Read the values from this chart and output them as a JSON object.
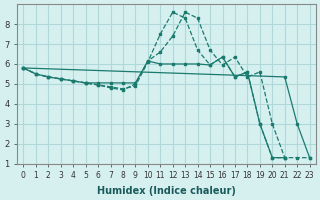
{
  "xlabel": "Humidex (Indice chaleur)",
  "background_color": "#d6f0f0",
  "grid_color": "#b0d8d8",
  "line_color": "#1a7a6e",
  "xlim": [
    -0.5,
    23.5
  ],
  "ylim": [
    1,
    9
  ],
  "yticks": [
    1,
    2,
    3,
    4,
    5,
    6,
    7,
    8
  ],
  "xticks": [
    0,
    1,
    2,
    3,
    4,
    5,
    6,
    7,
    8,
    9,
    10,
    11,
    12,
    13,
    14,
    15,
    16,
    17,
    18,
    19,
    20,
    21,
    22,
    23
  ],
  "lines": [
    {
      "x": [
        0,
        1,
        2,
        3,
        4,
        5,
        6,
        7,
        8,
        9,
        10,
        11,
        12,
        13,
        14,
        15,
        16,
        17,
        18,
        19,
        20,
        21,
        22,
        23
      ],
      "y": [
        5.8,
        5.5,
        5.35,
        5.25,
        5.15,
        5.05,
        4.95,
        4.8,
        4.7,
        5.0,
        6.15,
        6.6,
        7.4,
        8.6,
        8.3,
        6.7,
        5.95,
        6.35,
        5.35,
        5.6,
        3.0,
        1.3,
        1.3,
        1.3
      ],
      "style": "--"
    },
    {
      "x": [
        0,
        1,
        2,
        3,
        4,
        5,
        6,
        7,
        8,
        9,
        10,
        11,
        12,
        13,
        14,
        15,
        16,
        17,
        18,
        19,
        20,
        21
      ],
      "y": [
        5.8,
        5.5,
        5.35,
        5.25,
        5.15,
        5.05,
        4.95,
        4.85,
        4.75,
        4.9,
        6.1,
        7.5,
        8.6,
        8.3,
        6.7,
        5.95,
        6.35,
        5.35,
        5.6,
        3.0,
        1.3,
        1.3
      ],
      "style": "--"
    },
    {
      "x": [
        0,
        1,
        2,
        3,
        4,
        5,
        6,
        7,
        8,
        9,
        10,
        11,
        12,
        13,
        14,
        15,
        16,
        17,
        18,
        19,
        20,
        21
      ],
      "y": [
        5.8,
        5.5,
        5.35,
        5.25,
        5.15,
        5.05,
        5.05,
        5.05,
        5.05,
        5.05,
        6.15,
        6.0,
        6.0,
        6.0,
        6.0,
        5.95,
        6.35,
        5.35,
        5.6,
        3.0,
        1.3,
        1.3
      ],
      "style": "-"
    },
    {
      "x": [
        0,
        21,
        22,
        23
      ],
      "y": [
        5.8,
        5.35,
        3.0,
        1.3
      ],
      "style": "-"
    }
  ]
}
